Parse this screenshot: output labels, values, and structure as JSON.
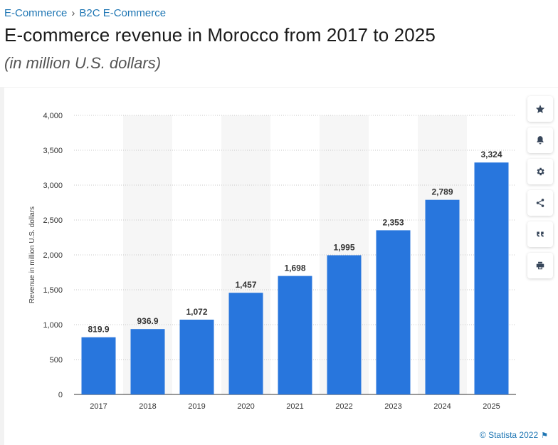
{
  "breadcrumb": {
    "items": [
      "E-Commerce",
      "B2C E-Commerce"
    ],
    "separator": "›"
  },
  "title": "E-commerce revenue in Morocco from 2017 to 2025",
  "subtitle": "(in million U.S. dollars)",
  "credit": "© Statista 2022",
  "icons": [
    "star-icon",
    "bell-icon",
    "gear-icon",
    "share-icon",
    "quote-icon",
    "print-icon"
  ],
  "colors": {
    "bar": "#2876dd",
    "link": "#1d75b3"
  },
  "chart_data": {
    "type": "bar",
    "categories": [
      "2017",
      "2018",
      "2019",
      "2020",
      "2021",
      "2022",
      "2023",
      "2024",
      "2025"
    ],
    "values": [
      819.9,
      936.9,
      1072,
      1457,
      1698,
      1995,
      2353,
      2789,
      3324
    ],
    "value_labels": [
      "819.9",
      "936.9",
      "1,072",
      "1,457",
      "1,698",
      "1,995",
      "2,353",
      "2,789",
      "3,324"
    ],
    "ylabel": "Revenue in million U.S. dollars",
    "xlabel": "",
    "ylim": [
      0,
      4000
    ],
    "yticks": [
      0,
      500,
      1000,
      1500,
      2000,
      2500,
      3000,
      3500,
      4000
    ],
    "ytick_labels": [
      "0",
      "500",
      "1,000",
      "1,500",
      "2,000",
      "2,500",
      "3,000",
      "3,500",
      "4,000"
    ],
    "grid": true
  }
}
